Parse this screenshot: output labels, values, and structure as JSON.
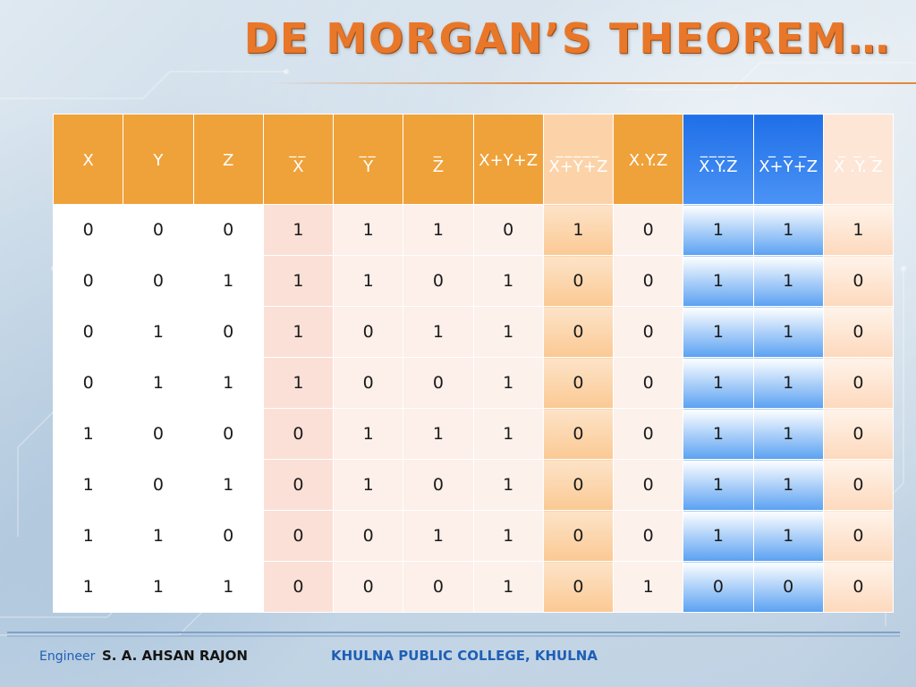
{
  "slide": {
    "title": "DE MORGAN’S THEOREM…",
    "colors": {
      "title": "#e8772a",
      "header_orange": "#efa23a",
      "header_blue": "#1f6fe8",
      "footer_blue": "#1f5fb5"
    }
  },
  "table": {
    "headers": [
      {
        "bar": "",
        "text": "X"
      },
      {
        "bar": "",
        "text": "Y"
      },
      {
        "bar": "",
        "text": "Z"
      },
      {
        "bar": "__",
        "text": "X"
      },
      {
        "bar": "__",
        "text": "Y"
      },
      {
        "bar": "_",
        "text": "Z"
      },
      {
        "bar": "",
        "text": "X+Y+Z"
      },
      {
        "bar": "_____",
        "text": "X+Y+Z"
      },
      {
        "bar": "",
        "text": "X.Y.Z"
      },
      {
        "bar": "____",
        "text": "X.Y.Z"
      },
      {
        "bar": "_ _ _",
        "text": "X+Y+Z"
      },
      {
        "bar": "_ _ _",
        "text": "X .Y. Z"
      }
    ],
    "rows": [
      [
        "0",
        "0",
        "0",
        "1",
        "1",
        "1",
        "0",
        "1",
        "0",
        "1",
        "1",
        "1"
      ],
      [
        "0",
        "0",
        "1",
        "1",
        "1",
        "0",
        "1",
        "0",
        "0",
        "1",
        "1",
        "0"
      ],
      [
        "0",
        "1",
        "0",
        "1",
        "0",
        "1",
        "1",
        "0",
        "0",
        "1",
        "1",
        "0"
      ],
      [
        "0",
        "1",
        "1",
        "1",
        "0",
        "0",
        "1",
        "0",
        "0",
        "1",
        "1",
        "0"
      ],
      [
        "1",
        "0",
        "0",
        "0",
        "1",
        "1",
        "1",
        "0",
        "0",
        "1",
        "1",
        "0"
      ],
      [
        "1",
        "0",
        "1",
        "0",
        "1",
        "0",
        "1",
        "0",
        "0",
        "1",
        "1",
        "0"
      ],
      [
        "1",
        "1",
        "0",
        "0",
        "0",
        "1",
        "1",
        "0",
        "0",
        "1",
        "1",
        "0"
      ],
      [
        "1",
        "1",
        "1",
        "0",
        "0",
        "0",
        "1",
        "0",
        "1",
        "0",
        "0",
        "0"
      ]
    ]
  },
  "footer": {
    "engineer_prefix": "Engineer",
    "engineer_name": "S. A. AHSAN RAJON",
    "college": "KHULNA PUBLIC COLLEGE, KHULNA"
  }
}
